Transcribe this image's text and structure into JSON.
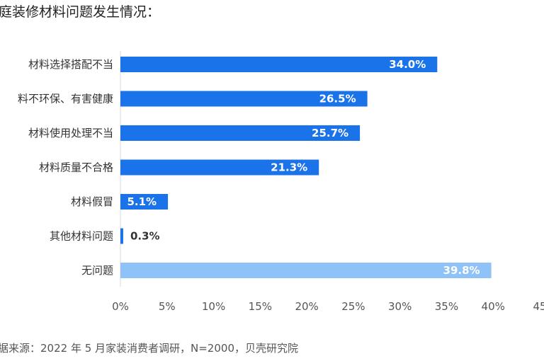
{
  "chart_data": {
    "type": "bar",
    "orientation": "horizontal",
    "title": "庭装修材料问题发生情况：",
    "categories": [
      "材料选择搭配不当",
      "料不环保、有害健康",
      "材料使用处理不当",
      "材料质量不合格",
      "材料假冒",
      "其他材料问题",
      "无问题"
    ],
    "values": [
      34.0,
      26.5,
      25.7,
      21.3,
      5.1,
      0.3,
      39.8
    ],
    "value_labels": [
      "34.0%",
      "26.5%",
      "25.7%",
      "21.3%",
      "5.1%",
      "0.3%",
      "39.8%"
    ],
    "x_ticks": [
      "0%",
      "5%",
      "10%",
      "15%",
      "20%",
      "25%",
      "30%",
      "35%",
      "40%",
      "45"
    ],
    "xlim": [
      0,
      45
    ],
    "grid": false,
    "colors": {
      "bar": "#1a73e8",
      "bar_highlight": "#8fc3f7",
      "label_inside": "#ffffff",
      "label_outside": "#333333",
      "axis": "#d9d9d9"
    },
    "source": "据来源：2022 年 5 月家装消费者调研，N=2000，贝壳研究院"
  }
}
